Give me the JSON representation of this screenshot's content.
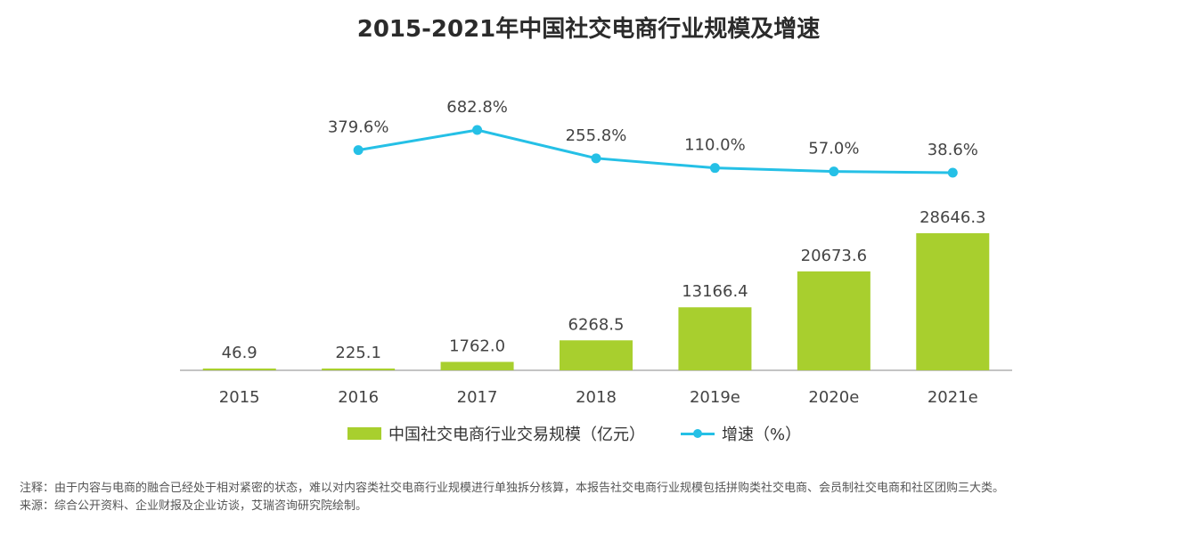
{
  "title": "2015-2021年中国社交电商行业规模及增速",
  "colors": {
    "bar": "#a8cf2e",
    "line": "#25c0e6",
    "axis": "#888888",
    "label": "#444444"
  },
  "legend": {
    "bar_label": "中国社交电商行业交易规模（亿元）",
    "line_label": "增速（%）"
  },
  "notes": {
    "note": "注释：由于内容与电商的融合已经处于相对紧密的状态，难以对内容类社交电商行业规模进行单独拆分核算，本报告社交电商行业规模包括拼购类社交电商、会员制社交电商和社区团购三大类。",
    "source": "来源：综合公开资料、企业财报及企业访谈，艾瑞咨询研究院绘制。"
  },
  "chart_data": {
    "type": "bar",
    "title": "2015-2021年中国社交电商行业规模及增速",
    "categories": [
      "2015",
      "2016",
      "2017",
      "2018",
      "2019e",
      "2020e",
      "2021e"
    ],
    "series": [
      {
        "name": "中国社交电商行业交易规模（亿元）",
        "type": "bar",
        "values": [
          46.9,
          225.1,
          1762.0,
          6268.5,
          13166.4,
          20673.6,
          28646.3
        ],
        "labels": [
          "46.9",
          "225.1",
          "1762.0",
          "6268.5",
          "13166.4",
          "20673.6",
          "28646.3"
        ]
      },
      {
        "name": "增速（%）",
        "type": "line",
        "values": [
          null,
          379.6,
          682.8,
          255.8,
          110.0,
          57.0,
          38.6
        ],
        "labels": [
          "",
          "379.6%",
          "682.8%",
          "255.8%",
          "110.0%",
          "57.0%",
          "38.6%"
        ]
      }
    ],
    "legend_position": "bottom",
    "grid": false
  }
}
